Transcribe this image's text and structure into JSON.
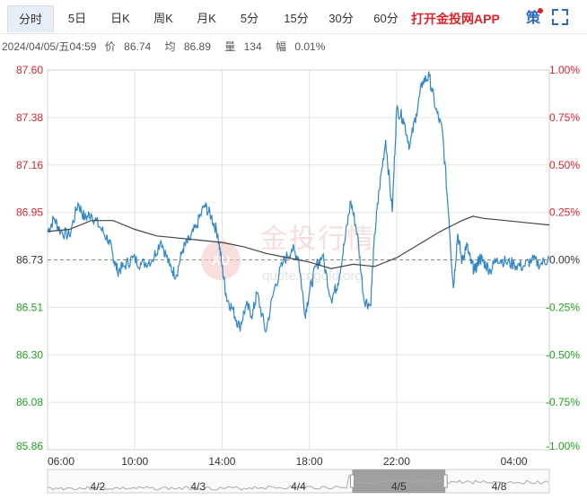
{
  "tabs": [
    "分时",
    "5日",
    "日K",
    "周K",
    "月K",
    "5分",
    "15分",
    "30分",
    "60分"
  ],
  "active_tab": 0,
  "promo_label": "打开金投网APP",
  "extra_label": "策",
  "info": {
    "datetime": "2024/04/05/五04:59",
    "price_label": "价",
    "price": "86.74",
    "avg_label": "均",
    "avg": "86.89",
    "volume_label": "量",
    "volume": "134",
    "change_label": "幅",
    "change": "0.01%"
  },
  "watermark": {
    "text": "金投行情",
    "sub": "quote.cngold.org",
    "logo": "AU"
  },
  "colors": {
    "price_line": "#2f86c8",
    "avg_line": "#444444",
    "up": "#e0222a",
    "down": "#1ea51e",
    "base": "#333333"
  },
  "chart_data": {
    "type": "line",
    "title": "",
    "ylim": [
      85.86,
      87.6
    ],
    "pct_range": [
      -1.0,
      1.0
    ],
    "y_ticks": [
      "87.60",
      "87.38",
      "87.16",
      "86.95",
      "86.73",
      "86.51",
      "86.30",
      "86.08",
      "85.86"
    ],
    "pct_ticks": [
      "1.00%",
      "0.75%",
      "0.50%",
      "0.25%",
      "0.00%",
      "-0.25%",
      "-0.50%",
      "-0.75%",
      "-1.00%"
    ],
    "x_ticks": [
      "06:00",
      "10:00",
      "14:00",
      "18:00",
      "22:00",
      "04:00"
    ],
    "x_tick_hours": [
      0,
      4,
      8,
      12,
      16,
      22
    ],
    "x_max_hours": 23,
    "series": [
      {
        "key": "price",
        "x": [
          0,
          0.3,
          0.6,
          1.0,
          1.4,
          1.7,
          2.0,
          2.4,
          2.8,
          3.0,
          3.2,
          3.5,
          3.9,
          4.3,
          4.8,
          5.2,
          5.6,
          5.9,
          6.2,
          6.5,
          6.8,
          7.2,
          7.5,
          7.8,
          8.0,
          8.2,
          8.5,
          8.8,
          9.1,
          9.4,
          9.6,
          10.0,
          10.4,
          10.8,
          11.2,
          11.5,
          11.8,
          12.0,
          12.3,
          12.6,
          13.0,
          13.3,
          13.6,
          13.9,
          14.2,
          14.5,
          14.8,
          15.0,
          15.2,
          15.5,
          15.8,
          16.0,
          16.3,
          16.6,
          16.9,
          17.2,
          17.5,
          17.8,
          18.1,
          18.4,
          18.6,
          18.8,
          19.0,
          19.2,
          19.4,
          19.6,
          19.8,
          20.0,
          20.3,
          20.6,
          21.0,
          21.4,
          21.8,
          22.2,
          22.6,
          23.0
        ],
        "values": [
          86.86,
          86.92,
          86.86,
          86.84,
          86.99,
          86.92,
          86.94,
          86.88,
          86.82,
          86.75,
          86.68,
          86.7,
          86.74,
          86.71,
          86.73,
          86.82,
          86.7,
          86.66,
          86.78,
          86.82,
          86.88,
          86.98,
          86.93,
          86.85,
          86.7,
          86.56,
          86.5,
          86.42,
          86.52,
          86.48,
          86.58,
          86.4,
          86.6,
          86.72,
          86.78,
          86.74,
          86.48,
          86.58,
          86.7,
          86.75,
          86.55,
          86.62,
          86.8,
          87.0,
          86.85,
          86.55,
          86.52,
          86.85,
          87.05,
          87.28,
          86.95,
          87.42,
          87.38,
          87.25,
          87.4,
          87.55,
          87.57,
          87.42,
          87.32,
          86.92,
          86.6,
          86.85,
          86.72,
          86.8,
          86.72,
          86.68,
          86.74,
          86.72,
          86.68,
          86.74,
          86.72,
          86.71,
          86.7,
          86.73,
          86.71,
          86.74
        ]
      },
      {
        "key": "avg",
        "x": [
          0,
          1.0,
          2.0,
          3.0,
          4.0,
          5.0,
          6.0,
          7.0,
          8.0,
          9.0,
          10.0,
          11.0,
          12.0,
          13.0,
          14.0,
          15.0,
          16.0,
          17.0,
          18.0,
          19.0,
          19.5,
          20.0,
          21.0,
          22.0,
          23.0
        ],
        "values": [
          86.86,
          86.87,
          86.91,
          86.91,
          86.87,
          86.84,
          86.83,
          86.82,
          86.81,
          86.79,
          86.76,
          86.74,
          86.72,
          86.69,
          86.71,
          86.7,
          86.74,
          86.8,
          86.86,
          86.91,
          86.93,
          86.92,
          86.91,
          86.9,
          86.89
        ]
      }
    ],
    "base_value": 86.73,
    "navigator": {
      "labels": [
        "4/2",
        "4/3",
        "4/4",
        "4/5",
        "4/8"
      ],
      "selected_index": 3
    }
  }
}
